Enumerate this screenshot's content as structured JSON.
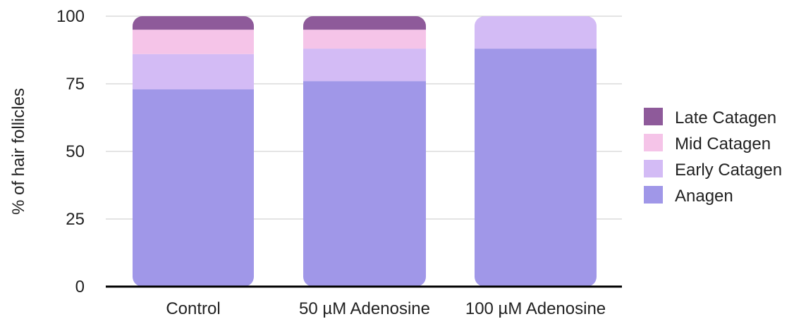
{
  "chart_data": {
    "type": "bar",
    "stacked": true,
    "title": "",
    "xlabel": "",
    "ylabel": "% of hair follicles",
    "ylim": [
      0,
      100
    ],
    "yticks": [
      "0",
      "25",
      "50",
      "75",
      "100"
    ],
    "grid": true,
    "legend_position": "right",
    "categories": [
      "Control",
      "50 µM Adenosine",
      "100 µM Adenosine"
    ],
    "series": [
      {
        "name": "Anagen",
        "color": "#a097e8",
        "values": [
          73,
          76,
          88
        ]
      },
      {
        "name": "Early Catagen",
        "color": "#d3bbf5",
        "values": [
          13,
          12,
          12
        ]
      },
      {
        "name": "Mid Catagen",
        "color": "#f5c4e8",
        "values": [
          9,
          7,
          0
        ]
      },
      {
        "name": "Late Catagen",
        "color": "#8e5a9a",
        "values": [
          5,
          5,
          0
        ]
      }
    ],
    "legend_order": [
      "Late Catagen",
      "Mid Catagen",
      "Early Catagen",
      "Anagen"
    ]
  }
}
